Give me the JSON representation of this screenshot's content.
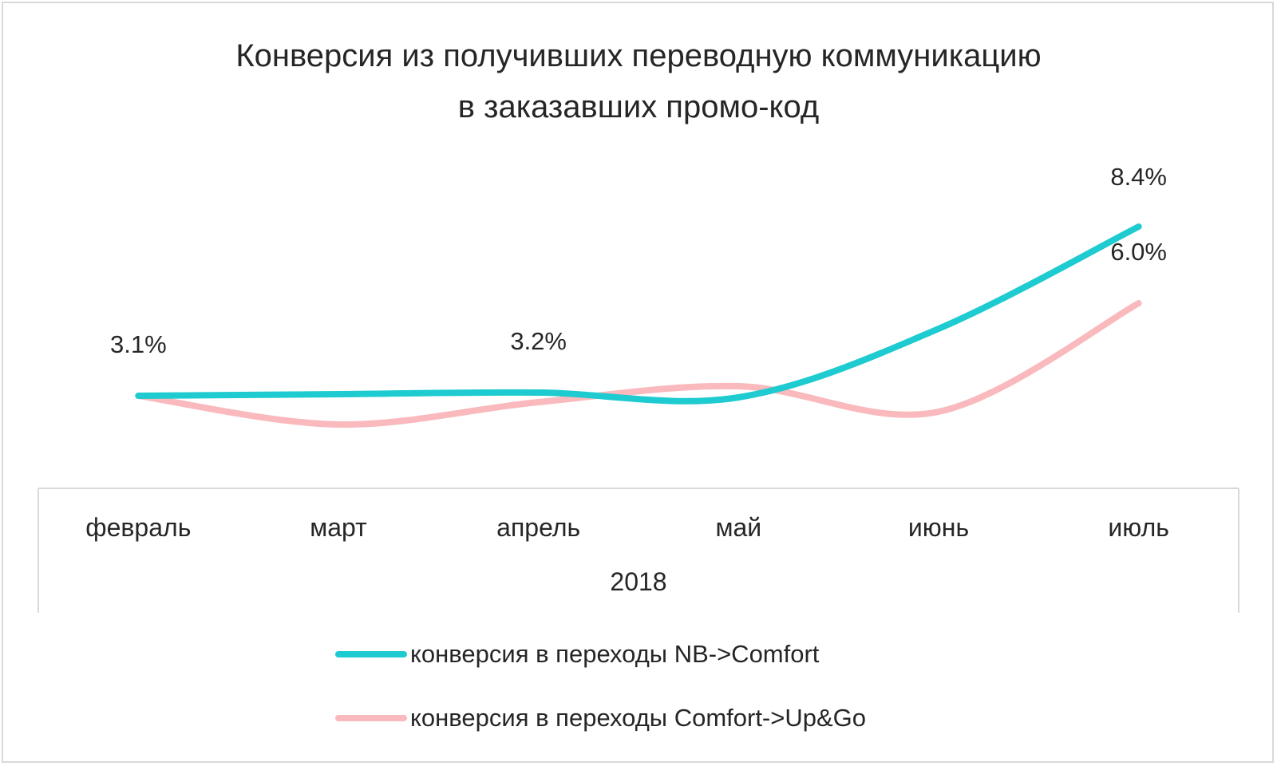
{
  "chart_data": {
    "type": "line",
    "title_lines": [
      "Конверсия из получивших переводную коммуникацию",
      "в заказавших промо-код"
    ],
    "categories": [
      "февраль",
      "март",
      "апрель",
      "май",
      "июнь",
      "июль"
    ],
    "category_group": "2018",
    "y_range": [
      0,
      12
    ],
    "grid": false,
    "smooth": true,
    "legend_position": "bottom",
    "series": [
      {
        "name": "конверсия в переходы NB->Comfort",
        "color": "#1ecbd0",
        "values": [
          3.1,
          3.15,
          3.2,
          3.05,
          5.2,
          8.4
        ],
        "data_labels": [
          "3.1%",
          null,
          "3.2%",
          null,
          null,
          "8.4%"
        ]
      },
      {
        "name": "конверсия в переходы Comfort->Up&Go",
        "color": "#f9b9bd",
        "values": [
          3.1,
          2.2,
          2.9,
          3.4,
          2.6,
          6.0
        ],
        "data_labels": [
          null,
          null,
          null,
          null,
          null,
          "6.0%"
        ]
      }
    ]
  }
}
